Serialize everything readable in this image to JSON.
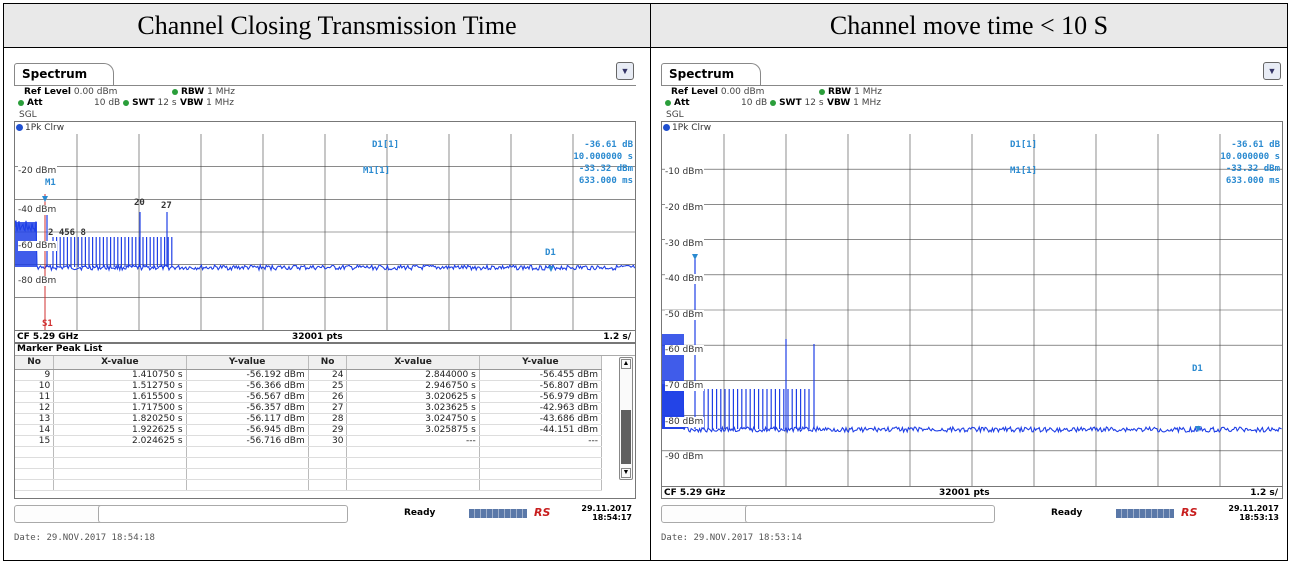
{
  "header": {
    "left_title": "Channel Closing Transmission Time",
    "right_title": "Channel move time < 10 S"
  },
  "colors": {
    "trace": "#1f3fe6",
    "marker": "#2a8ad0",
    "marker_line": "#d03030",
    "header_bg": "#e9e9e9"
  },
  "left": {
    "tab": "Spectrum",
    "icon": "window-menu-icon",
    "info": {
      "ref_level_label": "Ref Level",
      "ref_level_value": "0.00 dBm",
      "rbw_label": "RBW",
      "rbw_value": "1 MHz",
      "att_label": "Att",
      "att_value": "10 dB",
      "swt_label": "SWT",
      "swt_value": "12 s",
      "vbw_label": "VBW",
      "vbw_value": "1 MHz",
      "mode": "SGL"
    },
    "trace_label": "1Pk Clrw",
    "y_labels": [
      "-20 dBm",
      "-40 dBm",
      "-60 dBm",
      "-80 dBm"
    ],
    "markers": {
      "d1_name": "D1[1]",
      "d1_level": "-36.61 dB",
      "d1_time": "10.000000 s",
      "m1_name": "M1[1]",
      "m1_level": "-33.32 dBm",
      "m1_time": "633.000 ms",
      "plot_m1": "M1",
      "plot_d1": "D1",
      "plot_s1": "S1",
      "peak_labels": [
        "20",
        "27",
        "2 456 8"
      ]
    },
    "footer": {
      "cf": "CF 5.29 GHz",
      "pts": "32001 pts",
      "span": "1.2 s/"
    },
    "peak_list": {
      "title": "Marker Peak List",
      "headers": [
        "No",
        "X-value",
        "Y-value",
        "No",
        "X-value",
        "Y-value"
      ],
      "rows": [
        [
          "9",
          "1.410750 s",
          "-56.192 dBm",
          "24",
          "2.844000 s",
          "-56.455 dBm"
        ],
        [
          "10",
          "1.512750 s",
          "-56.366 dBm",
          "25",
          "2.946750 s",
          "-56.807 dBm"
        ],
        [
          "11",
          "1.615500 s",
          "-56.567 dBm",
          "26",
          "3.020625 s",
          "-56.979 dBm"
        ],
        [
          "12",
          "1.717500 s",
          "-56.357 dBm",
          "27",
          "3.023625 s",
          "-42.963 dBm"
        ],
        [
          "13",
          "1.820250 s",
          "-56.117 dBm",
          "28",
          "3.024750 s",
          "-43.686 dBm"
        ],
        [
          "14",
          "1.922625 s",
          "-56.945 dBm",
          "29",
          "3.025875 s",
          "-44.151 dBm"
        ],
        [
          "15",
          "2.024625 s",
          "-56.716 dBm",
          "30",
          "---",
          "---"
        ]
      ]
    },
    "status": {
      "ready": "Ready",
      "logo": "RS",
      "date": "29.11.2017",
      "time": "18:54:17"
    },
    "date_line": "Date: 29.NOV.2017  18:54:18"
  },
  "right": {
    "tab": "Spectrum",
    "icon": "window-menu-icon",
    "info": {
      "ref_level_label": "Ref Level",
      "ref_level_value": "0.00 dBm",
      "rbw_label": "RBW",
      "rbw_value": "1 MHz",
      "att_label": "Att",
      "att_value": "10 dB",
      "swt_label": "SWT",
      "swt_value": "12 s",
      "vbw_label": "VBW",
      "vbw_value": "1 MHz",
      "mode": "SGL"
    },
    "trace_label": "1Pk Clrw",
    "y_labels": [
      "-10 dBm",
      "-20 dBm",
      "-30 dBm",
      "-40 dBm",
      "-50 dBm",
      "-60 dBm",
      "-70 dBm",
      "-80 dBm",
      "-90 dBm"
    ],
    "markers": {
      "d1_name": "D1[1]",
      "d1_level": "-36.61 dB",
      "d1_time": "10.000000 s",
      "m1_name": "M1[1]",
      "m1_level": "-33.32 dBm",
      "m1_time": "633.000 ms",
      "plot_d1": "D1"
    },
    "footer": {
      "cf": "CF 5.29 GHz",
      "pts": "32001 pts",
      "span": "1.2 s/"
    },
    "status": {
      "ready": "Ready",
      "logo": "RS",
      "date": "29.11.2017",
      "time": "18:53:13"
    },
    "date_line": "Date: 29.NOV.2017  18:53:14"
  }
}
